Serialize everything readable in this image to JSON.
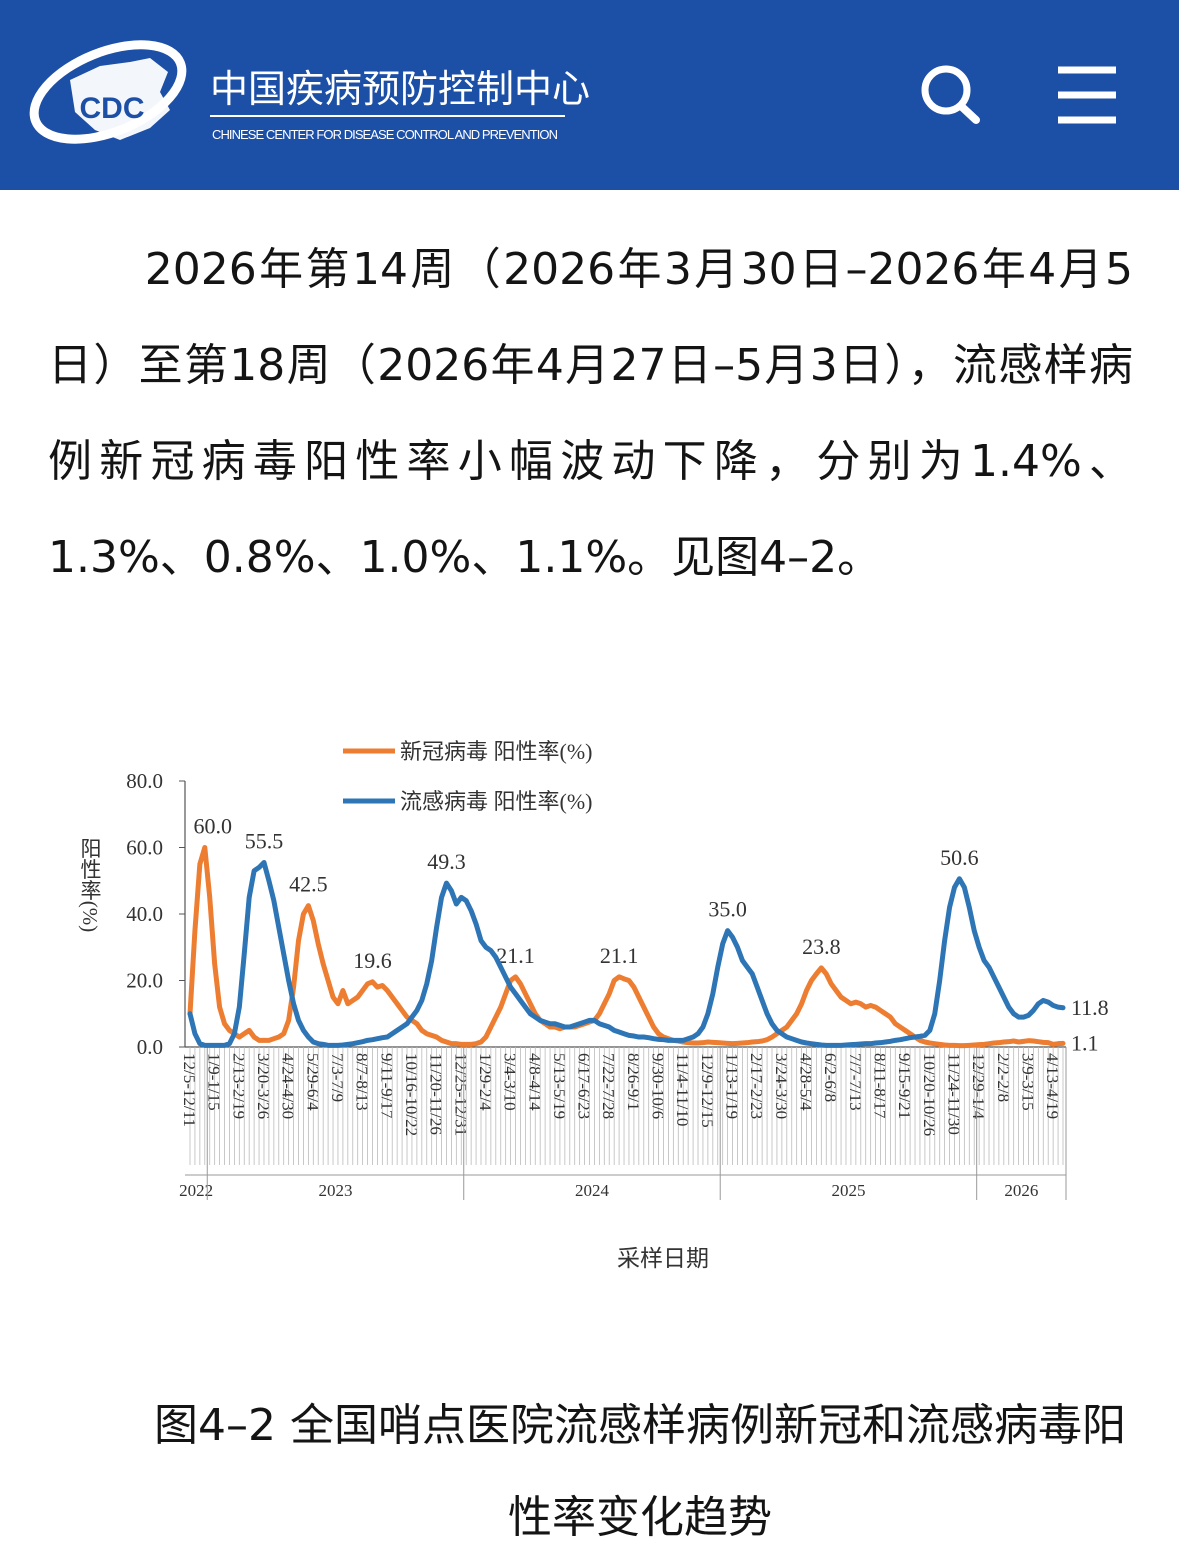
{
  "header": {
    "logo": "CDC",
    "title": "中国疾病预防控制中心",
    "subtitle": "CHINESE CENTER FOR DISEASE CONTROL AND PREVENTION"
  },
  "paragraph": "2026年第14周（2026年3月30日–2026年4月5日）至第18周（2026年4月27日–5月3日），流感样病例新冠病毒阳性率小幅波动下降，分别为1.4%、1.3%、0.8%、1.0%、1.1%。见图4–2。",
  "chart_data": {
    "type": "line",
    "ylabel": "阳性率(%)",
    "xlabel": "采样日期",
    "ylim": [
      0,
      80
    ],
    "yticks": [
      {
        "value": 0,
        "label": "0.0"
      },
      {
        "value": 20,
        "label": "20.0"
      },
      {
        "value": 40,
        "label": "40.0"
      },
      {
        "value": 60,
        "label": "60.0"
      },
      {
        "value": 80,
        "label": "80.0"
      }
    ],
    "legend": "top",
    "categories": [
      "12/5-12/11",
      null,
      null,
      null,
      null,
      "1/9-1/15",
      null,
      null,
      null,
      null,
      "2/13-2/19",
      null,
      null,
      null,
      null,
      "3/20-3/26",
      null,
      null,
      null,
      null,
      "4/24-4/30",
      null,
      null,
      null,
      null,
      "5/29-6/4",
      null,
      null,
      null,
      null,
      "7/3-7/9",
      null,
      null,
      null,
      null,
      "8/7-8/13",
      null,
      null,
      null,
      null,
      "9/11-9/17",
      null,
      null,
      null,
      null,
      "10/16-10/22",
      null,
      null,
      null,
      null,
      "11/20-11/26",
      null,
      null,
      null,
      null,
      "12/25-12/31",
      null,
      null,
      null,
      null,
      "1/29-2/4",
      null,
      null,
      null,
      null,
      "3/4-3/10",
      null,
      null,
      null,
      null,
      "4/8-4/14",
      null,
      null,
      null,
      null,
      "5/13-5/19",
      null,
      null,
      null,
      null,
      "6/17-6/23",
      null,
      null,
      null,
      null,
      "7/22-7/28",
      null,
      null,
      null,
      null,
      "8/26-9/1",
      null,
      null,
      null,
      null,
      "9/30-10/6",
      null,
      null,
      null,
      null,
      "11/4-11/10",
      null,
      null,
      null,
      null,
      "12/9-12/15",
      null,
      null,
      null,
      null,
      "1/13-1/19",
      null,
      null,
      null,
      null,
      "2/17-2/23",
      null,
      null,
      null,
      null,
      "3/24-3/30",
      null,
      null,
      null,
      null,
      "4/28-5/4",
      null,
      null,
      null,
      null,
      "6/2-6/8",
      null,
      null,
      null,
      null,
      "7/7-7/13",
      null,
      null,
      null,
      null,
      "8/11-8/17",
      null,
      null,
      null,
      null,
      "9/15-9/21",
      null,
      null,
      null,
      null,
      "10/20-10/26",
      null,
      null,
      null,
      null,
      "11/24-11/30",
      null,
      null,
      null,
      null,
      "12/29-1/4",
      null,
      null,
      null,
      null,
      "2/2-2/8",
      null,
      null,
      null,
      null,
      "3/9-3/15",
      null,
      null,
      null,
      null,
      "4/13-4/19",
      null,
      null
    ],
    "x_groups": [
      {
        "label": "2022",
        "start": 0
      },
      {
        "label": "2023",
        "start": 4
      },
      {
        "label": "2024",
        "start": 56
      },
      {
        "label": "2025",
        "start": 108
      },
      {
        "label": "2026",
        "start": 160
      }
    ],
    "series": [
      {
        "name": "新冠病毒 阳性率(%)",
        "color": "#ed7d31",
        "values": [
          10,
          35,
          55,
          60,
          45,
          25,
          12,
          7,
          5,
          4,
          3,
          4,
          5,
          3,
          2,
          2,
          2,
          2.5,
          3,
          4,
          8,
          18,
          32,
          40,
          42.5,
          38,
          31,
          25,
          20,
          15,
          13,
          17,
          13,
          14,
          15,
          17,
          19,
          19.6,
          18,
          18.5,
          17,
          15,
          13,
          11,
          9,
          8,
          7,
          5,
          4,
          3.5,
          3,
          2,
          1.5,
          1,
          1,
          0.8,
          0.8,
          0.8,
          1,
          1.5,
          3,
          6,
          9,
          12,
          16,
          20,
          21.1,
          19,
          16,
          13,
          10,
          8,
          7,
          6,
          6,
          5.5,
          6,
          6,
          6,
          6.5,
          7,
          7.5,
          8,
          10,
          13,
          16,
          20,
          21.1,
          20.5,
          20,
          18,
          15,
          12,
          9,
          6,
          4,
          3,
          2.5,
          2,
          1.8,
          1.5,
          1.3,
          1.2,
          1.2,
          1.3,
          1.5,
          1.4,
          1.3,
          1.2,
          1.1,
          1,
          1.1,
          1.2,
          1.3,
          1.5,
          1.6,
          1.8,
          2.2,
          3,
          4,
          5,
          6,
          8,
          10,
          13,
          17,
          20,
          22,
          23.8,
          22,
          19,
          17,
          15,
          14,
          13,
          13.5,
          13,
          12,
          12.5,
          12,
          11,
          10,
          9,
          7,
          6,
          5,
          4,
          3,
          2,
          1.5,
          1.2,
          1,
          0.8,
          0.6,
          0.5,
          0.5,
          0.4,
          0.4,
          0.5,
          0.6,
          0.7,
          0.8,
          1,
          1.2,
          1.3,
          1.5,
          1.6,
          1.8,
          1.5,
          1.7,
          1.9,
          1.8,
          1.6,
          1.4,
          1.3,
          0.8,
          1.0,
          1.1
        ],
        "value_labels": {
          "3": "60.0",
          "24": "42.5",
          "37": "19.6",
          "66": "21.1",
          "87": "21.1",
          "128": "23.8",
          "177": "1.1"
        }
      },
      {
        "name": "流感病毒 阳性率(%)",
        "color": "#2e75b6",
        "values": [
          10,
          4,
          1,
          0.5,
          0.5,
          0.5,
          0.5,
          0.5,
          1,
          4,
          12,
          28,
          45,
          53,
          54,
          55.5,
          50,
          44,
          36,
          28,
          20,
          13,
          8,
          5,
          3,
          1.5,
          1,
          0.8,
          0.5,
          0.5,
          0.5,
          0.6,
          0.8,
          1,
          1.3,
          1.6,
          2,
          2.2,
          2.5,
          2.8,
          3,
          4,
          5,
          6,
          7,
          9,
          11,
          14,
          19,
          26,
          36,
          45,
          49.3,
          47,
          43,
          45,
          44,
          41,
          37,
          32,
          30,
          29,
          27,
          24,
          21,
          18,
          16,
          14,
          12,
          10,
          9,
          8,
          7.5,
          7,
          7,
          6.5,
          6,
          6,
          6.5,
          7,
          7.5,
          8,
          8,
          7,
          6.5,
          6,
          5,
          4.5,
          4,
          3.5,
          3.3,
          3,
          3,
          2.8,
          2.5,
          2.3,
          2.2,
          2,
          2,
          2,
          2,
          2.5,
          3,
          4,
          6,
          10,
          16,
          24,
          31,
          35,
          33,
          30,
          26,
          24,
          22,
          18,
          14,
          10,
          7,
          5,
          4,
          3,
          2.5,
          2,
          1.5,
          1.2,
          1,
          0.8,
          0.6,
          0.5,
          0.5,
          0.5,
          0.5,
          0.6,
          0.7,
          0.8,
          0.9,
          1,
          1,
          1.2,
          1.3,
          1.5,
          1.7,
          2,
          2.2,
          2.5,
          2.8,
          3,
          3.2,
          3.5,
          5,
          10,
          20,
          32,
          42,
          48,
          50.6,
          48,
          42,
          35,
          30,
          26,
          24,
          21,
          18,
          15,
          12,
          10,
          9,
          9,
          9.5,
          11,
          13,
          14,
          13.5,
          12.5,
          12,
          11.8
        ],
        "value_labels": {
          "15": "55.5",
          "52": "49.3",
          "109": "35.0",
          "156": "50.6",
          "177": "11.8"
        }
      }
    ]
  },
  "caption": "图4–2 全国哨点医院流感样病例新冠和流感病毒阳性率变化趋势"
}
